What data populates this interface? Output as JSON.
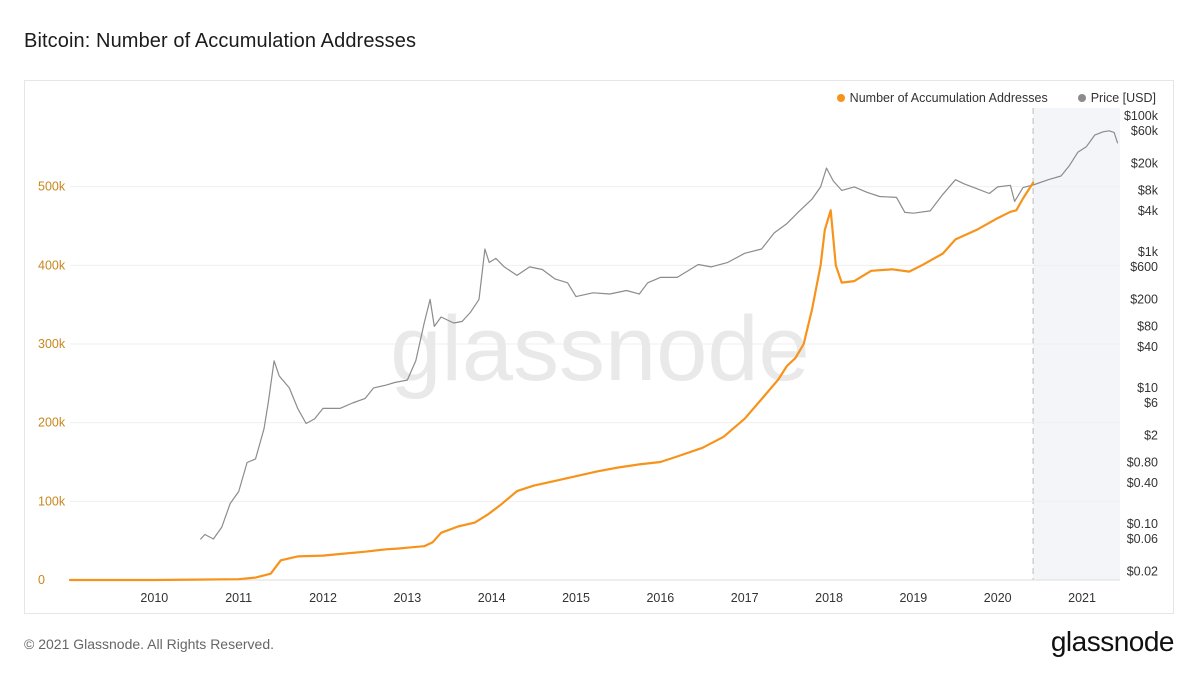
{
  "page": {
    "title": "Bitcoin: Number of Accumulation Addresses",
    "copyright": "© 2021 Glassnode. All Rights Reserved.",
    "logo_text": "glassnode",
    "watermark": "glassnode"
  },
  "colors": {
    "accumulation": "#f7931a",
    "price": "#8c8c8c",
    "left_axis": "#c8861c",
    "grid": "#efefef",
    "shade": "#f4f5f9",
    "divider": "#cfcfcf"
  },
  "chart_data": {
    "type": "line",
    "title": "Bitcoin: Number of Accumulation Addresses",
    "legend": [
      "Number of Accumulation Addresses",
      "Price [USD]"
    ],
    "legend_position": "top-right",
    "x_range": [
      2009.0,
      2021.45
    ],
    "x_ticks": [
      "2010",
      "2011",
      "2012",
      "2013",
      "2014",
      "2015",
      "2016",
      "2017",
      "2018",
      "2019",
      "2020",
      "2021"
    ],
    "y_left": {
      "label": "Number of Accumulation Addresses",
      "range": [
        0,
        600000
      ],
      "ticks": [
        "0",
        "100k",
        "200k",
        "300k",
        "400k",
        "500k"
      ],
      "tick_values": [
        0,
        100000,
        200000,
        300000,
        400000,
        500000
      ]
    },
    "y_right": {
      "label": "Price [USD]",
      "scale": "log",
      "range": [
        0.015,
        130000
      ],
      "ticks": [
        "$0.02",
        "$0.06",
        "$0.10",
        "$0.40",
        "$0.80",
        "$2",
        "$6",
        "$10",
        "$40",
        "$80",
        "$200",
        "$600",
        "$1k",
        "$4k",
        "$8k",
        "$20k",
        "$60k",
        "$100k"
      ],
      "tick_values": [
        0.02,
        0.06,
        0.1,
        0.4,
        0.8,
        2,
        6,
        10,
        40,
        80,
        200,
        600,
        1000,
        4000,
        8000,
        20000,
        60000,
        100000
      ]
    },
    "shaded_from_x": 2020.42,
    "series": [
      {
        "name": "Number of Accumulation Addresses",
        "axis": "left",
        "points": [
          [
            2009.0,
            0
          ],
          [
            2010.0,
            0
          ],
          [
            2010.5,
            500
          ],
          [
            2011.0,
            1000
          ],
          [
            2011.2,
            3000
          ],
          [
            2011.38,
            8000
          ],
          [
            2011.5,
            25000
          ],
          [
            2011.7,
            30000
          ],
          [
            2012.0,
            31000
          ],
          [
            2012.2,
            33000
          ],
          [
            2012.5,
            36000
          ],
          [
            2012.75,
            39000
          ],
          [
            2012.9,
            40000
          ],
          [
            2013.0,
            41000
          ],
          [
            2013.2,
            43000
          ],
          [
            2013.3,
            48000
          ],
          [
            2013.4,
            60000
          ],
          [
            2013.6,
            68000
          ],
          [
            2013.8,
            73000
          ],
          [
            2013.95,
            83000
          ],
          [
            2014.1,
            95000
          ],
          [
            2014.3,
            113000
          ],
          [
            2014.5,
            120000
          ],
          [
            2014.75,
            126000
          ],
          [
            2015.0,
            132000
          ],
          [
            2015.25,
            138000
          ],
          [
            2015.5,
            143000
          ],
          [
            2015.75,
            147000
          ],
          [
            2016.0,
            150000
          ],
          [
            2016.2,
            157000
          ],
          [
            2016.5,
            168000
          ],
          [
            2016.75,
            182000
          ],
          [
            2017.0,
            205000
          ],
          [
            2017.2,
            230000
          ],
          [
            2017.4,
            255000
          ],
          [
            2017.5,
            272000
          ],
          [
            2017.6,
            282000
          ],
          [
            2017.7,
            300000
          ],
          [
            2017.8,
            345000
          ],
          [
            2017.9,
            400000
          ],
          [
            2017.95,
            445000
          ],
          [
            2018.02,
            470000
          ],
          [
            2018.08,
            400000
          ],
          [
            2018.15,
            378000
          ],
          [
            2018.3,
            380000
          ],
          [
            2018.5,
            393000
          ],
          [
            2018.75,
            395000
          ],
          [
            2018.95,
            392000
          ],
          [
            2019.1,
            400000
          ],
          [
            2019.35,
            415000
          ],
          [
            2019.5,
            433000
          ],
          [
            2019.75,
            445000
          ],
          [
            2020.0,
            460000
          ],
          [
            2020.15,
            468000
          ],
          [
            2020.22,
            470000
          ],
          [
            2020.3,
            485000
          ],
          [
            2020.42,
            505000
          ]
        ]
      },
      {
        "name": "Price [USD]",
        "axis": "right",
        "points": [
          [
            2010.55,
            0.06
          ],
          [
            2010.6,
            0.07
          ],
          [
            2010.7,
            0.06
          ],
          [
            2010.8,
            0.09
          ],
          [
            2010.9,
            0.2
          ],
          [
            2011.0,
            0.3
          ],
          [
            2011.1,
            0.8
          ],
          [
            2011.2,
            0.9
          ],
          [
            2011.3,
            2.5
          ],
          [
            2011.35,
            6
          ],
          [
            2011.42,
            25
          ],
          [
            2011.48,
            15
          ],
          [
            2011.6,
            10
          ],
          [
            2011.7,
            5
          ],
          [
            2011.8,
            3
          ],
          [
            2011.9,
            3.5
          ],
          [
            2012.0,
            5
          ],
          [
            2012.2,
            5
          ],
          [
            2012.35,
            6
          ],
          [
            2012.5,
            7
          ],
          [
            2012.6,
            10
          ],
          [
            2012.75,
            11
          ],
          [
            2012.85,
            12
          ],
          [
            2013.0,
            13
          ],
          [
            2013.1,
            25
          ],
          [
            2013.2,
            90
          ],
          [
            2013.27,
            200
          ],
          [
            2013.32,
            80
          ],
          [
            2013.4,
            110
          ],
          [
            2013.55,
            90
          ],
          [
            2013.65,
            95
          ],
          [
            2013.75,
            130
          ],
          [
            2013.85,
            200
          ],
          [
            2013.92,
            1100
          ],
          [
            2013.97,
            700
          ],
          [
            2014.05,
            800
          ],
          [
            2014.15,
            600
          ],
          [
            2014.3,
            450
          ],
          [
            2014.45,
            600
          ],
          [
            2014.6,
            550
          ],
          [
            2014.75,
            400
          ],
          [
            2014.9,
            350
          ],
          [
            2015.0,
            220
          ],
          [
            2015.2,
            250
          ],
          [
            2015.4,
            240
          ],
          [
            2015.6,
            270
          ],
          [
            2015.75,
            240
          ],
          [
            2015.85,
            350
          ],
          [
            2016.0,
            420
          ],
          [
            2016.2,
            420
          ],
          [
            2016.45,
            650
          ],
          [
            2016.6,
            600
          ],
          [
            2016.8,
            700
          ],
          [
            2017.0,
            950
          ],
          [
            2017.2,
            1100
          ],
          [
            2017.35,
            1900
          ],
          [
            2017.5,
            2600
          ],
          [
            2017.65,
            4000
          ],
          [
            2017.8,
            6000
          ],
          [
            2017.9,
            9000
          ],
          [
            2017.97,
            17000
          ],
          [
            2018.05,
            11000
          ],
          [
            2018.15,
            8000
          ],
          [
            2018.3,
            9000
          ],
          [
            2018.45,
            7500
          ],
          [
            2018.6,
            6500
          ],
          [
            2018.8,
            6300
          ],
          [
            2018.9,
            3800
          ],
          [
            2019.0,
            3700
          ],
          [
            2019.2,
            4000
          ],
          [
            2019.35,
            7000
          ],
          [
            2019.5,
            11500
          ],
          [
            2019.6,
            10000
          ],
          [
            2019.75,
            8500
          ],
          [
            2019.9,
            7200
          ],
          [
            2020.0,
            9000
          ],
          [
            2020.15,
            9500
          ],
          [
            2020.2,
            5500
          ],
          [
            2020.3,
            8800
          ],
          [
            2020.42,
            9600
          ],
          [
            2020.6,
            11500
          ],
          [
            2020.75,
            13000
          ],
          [
            2020.85,
            18500
          ],
          [
            2020.95,
            29000
          ],
          [
            2021.05,
            35000
          ],
          [
            2021.15,
            52000
          ],
          [
            2021.25,
            58000
          ],
          [
            2021.32,
            60000
          ],
          [
            2021.38,
            57000
          ],
          [
            2021.42,
            40000
          ]
        ]
      }
    ]
  }
}
